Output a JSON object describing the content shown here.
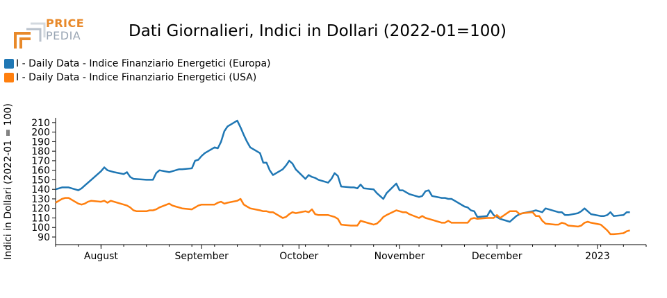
{
  "logo": {
    "line1": "PRICE",
    "line2": "PEDIA"
  },
  "colors": {
    "europa": "#1f77b4",
    "usa": "#ff7f0e",
    "logo_orange": "#e8892a",
    "logo_gray": "#9aa6b4"
  },
  "chart_data": {
    "type": "line",
    "title": "Dati Giornalieri, Indici in Dollari (2022-01=100)",
    "ylabel": "Indici in Dollari (2022-01 = 100)",
    "xlabel": "",
    "ylim": [
      82,
      215
    ],
    "xlim": [
      "2022-07-18",
      "2023-01-16"
    ],
    "yticks": [
      90,
      100,
      110,
      120,
      130,
      140,
      150,
      160,
      170,
      180,
      190,
      200,
      210
    ],
    "xticks": [
      {
        "label": "August",
        "date": "2022-08-01"
      },
      {
        "label": "September",
        "date": "2022-09-01"
      },
      {
        "label": "October",
        "date": "2022-10-01"
      },
      {
        "label": "November",
        "date": "2022-11-01"
      },
      {
        "label": "December",
        "date": "2022-12-01"
      },
      {
        "label": "2023",
        "date": "2023-01-01"
      }
    ],
    "legend_position": "top-left",
    "series": [
      {
        "name": "I - Daily Data - Indice Finanziario Energetici (Europa)",
        "color": "#1f77b4",
        "points": [
          [
            "2022-07-18",
            140
          ],
          [
            "2022-07-19",
            141
          ],
          [
            "2022-07-20",
            142
          ],
          [
            "2022-07-21",
            142
          ],
          [
            "2022-07-22",
            142
          ],
          [
            "2022-07-25",
            139
          ],
          [
            "2022-07-26",
            141
          ],
          [
            "2022-07-27",
            144
          ],
          [
            "2022-07-28",
            147
          ],
          [
            "2022-07-29",
            150
          ],
          [
            "2022-08-01",
            159
          ],
          [
            "2022-08-02",
            163
          ],
          [
            "2022-08-03",
            160
          ],
          [
            "2022-08-05",
            158
          ],
          [
            "2022-08-08",
            156
          ],
          [
            "2022-08-09",
            158
          ],
          [
            "2022-08-10",
            153
          ],
          [
            "2022-08-11",
            151
          ],
          [
            "2022-08-15",
            150
          ],
          [
            "2022-08-17",
            150
          ],
          [
            "2022-08-18",
            157
          ],
          [
            "2022-08-19",
            160
          ],
          [
            "2022-08-22",
            158
          ],
          [
            "2022-08-23",
            159
          ],
          [
            "2022-08-24",
            160
          ],
          [
            "2022-08-25",
            161
          ],
          [
            "2022-08-26",
            161
          ],
          [
            "2022-08-29",
            162
          ],
          [
            "2022-08-30",
            170
          ],
          [
            "2022-08-31",
            171
          ],
          [
            "2022-09-01",
            175
          ],
          [
            "2022-09-02",
            178
          ],
          [
            "2022-09-05",
            184
          ],
          [
            "2022-09-06",
            183
          ],
          [
            "2022-09-07",
            190
          ],
          [
            "2022-09-08",
            201
          ],
          [
            "2022-09-09",
            206
          ],
          [
            "2022-09-12",
            212
          ],
          [
            "2022-09-13",
            205
          ],
          [
            "2022-09-14",
            197
          ],
          [
            "2022-09-15",
            190
          ],
          [
            "2022-09-16",
            184
          ],
          [
            "2022-09-19",
            178
          ],
          [
            "2022-09-20",
            168
          ],
          [
            "2022-09-21",
            168
          ],
          [
            "2022-09-22",
            160
          ],
          [
            "2022-09-23",
            155
          ],
          [
            "2022-09-26",
            161
          ],
          [
            "2022-09-27",
            165
          ],
          [
            "2022-09-28",
            170
          ],
          [
            "2022-09-29",
            167
          ],
          [
            "2022-09-30",
            161
          ],
          [
            "2022-10-03",
            151
          ],
          [
            "2022-10-04",
            155
          ],
          [
            "2022-10-05",
            153
          ],
          [
            "2022-10-06",
            152
          ],
          [
            "2022-10-07",
            150
          ],
          [
            "2022-10-10",
            147
          ],
          [
            "2022-10-11",
            151
          ],
          [
            "2022-10-12",
            157
          ],
          [
            "2022-10-13",
            154
          ],
          [
            "2022-10-14",
            143
          ],
          [
            "2022-10-17",
            142
          ],
          [
            "2022-10-18",
            142
          ],
          [
            "2022-10-19",
            141
          ],
          [
            "2022-10-20",
            145
          ],
          [
            "2022-10-21",
            141
          ],
          [
            "2022-10-24",
            140
          ],
          [
            "2022-10-25",
            136
          ],
          [
            "2022-10-26",
            133
          ],
          [
            "2022-10-27",
            130
          ],
          [
            "2022-10-28",
            136
          ],
          [
            "2022-10-31",
            146
          ],
          [
            "2022-11-01",
            139
          ],
          [
            "2022-11-02",
            139
          ],
          [
            "2022-11-03",
            137
          ],
          [
            "2022-11-04",
            135
          ],
          [
            "2022-11-07",
            132
          ],
          [
            "2022-11-08",
            133
          ],
          [
            "2022-11-09",
            138
          ],
          [
            "2022-11-10",
            139
          ],
          [
            "2022-11-11",
            133
          ],
          [
            "2022-11-14",
            131
          ],
          [
            "2022-11-15",
            131
          ],
          [
            "2022-11-16",
            130
          ],
          [
            "2022-11-17",
            130
          ],
          [
            "2022-11-18",
            128
          ],
          [
            "2022-11-21",
            122
          ],
          [
            "2022-11-22",
            121
          ],
          [
            "2022-11-23",
            118
          ],
          [
            "2022-11-24",
            117
          ],
          [
            "2022-11-25",
            111
          ],
          [
            "2022-11-28",
            112
          ],
          [
            "2022-11-29",
            118
          ],
          [
            "2022-11-30",
            113
          ],
          [
            "2022-12-01",
            111
          ],
          [
            "2022-12-02",
            109
          ],
          [
            "2022-12-05",
            106
          ],
          [
            "2022-12-06",
            109
          ],
          [
            "2022-12-07",
            112
          ],
          [
            "2022-12-08",
            114
          ],
          [
            "2022-12-09",
            115
          ],
          [
            "2022-12-12",
            117
          ],
          [
            "2022-12-13",
            118
          ],
          [
            "2022-12-14",
            117
          ],
          [
            "2022-12-15",
            116
          ],
          [
            "2022-12-16",
            120
          ],
          [
            "2022-12-19",
            117
          ],
          [
            "2022-12-20",
            116
          ],
          [
            "2022-12-21",
            116
          ],
          [
            "2022-12-22",
            113
          ],
          [
            "2022-12-23",
            113
          ],
          [
            "2022-12-26",
            115
          ],
          [
            "2022-12-27",
            117
          ],
          [
            "2022-12-28",
            120
          ],
          [
            "2022-12-29",
            117
          ],
          [
            "2022-12-30",
            114
          ],
          [
            "2023-01-02",
            112
          ],
          [
            "2023-01-03",
            112
          ],
          [
            "2023-01-04",
            113
          ],
          [
            "2023-01-05",
            116
          ],
          [
            "2023-01-06",
            112
          ],
          [
            "2023-01-09",
            113
          ],
          [
            "2023-01-10",
            116
          ],
          [
            "2023-01-11",
            116
          ]
        ]
      },
      {
        "name": "I - Daily Data - Indice Finanziario Energetici (USA)",
        "color": "#ff7f0e",
        "points": [
          [
            "2022-07-18",
            126
          ],
          [
            "2022-07-19",
            128
          ],
          [
            "2022-07-20",
            130
          ],
          [
            "2022-07-21",
            131
          ],
          [
            "2022-07-22",
            131
          ],
          [
            "2022-07-25",
            125
          ],
          [
            "2022-07-26",
            124
          ],
          [
            "2022-07-27",
            125
          ],
          [
            "2022-07-28",
            127
          ],
          [
            "2022-07-29",
            128
          ],
          [
            "2022-08-01",
            127
          ],
          [
            "2022-08-02",
            128
          ],
          [
            "2022-08-03",
            126
          ],
          [
            "2022-08-04",
            128
          ],
          [
            "2022-08-05",
            127
          ],
          [
            "2022-08-08",
            124
          ],
          [
            "2022-08-09",
            123
          ],
          [
            "2022-08-10",
            121
          ],
          [
            "2022-08-11",
            118
          ],
          [
            "2022-08-12",
            117
          ],
          [
            "2022-08-15",
            117
          ],
          [
            "2022-08-16",
            118
          ],
          [
            "2022-08-17",
            118
          ],
          [
            "2022-08-18",
            119
          ],
          [
            "2022-08-19",
            121
          ],
          [
            "2022-08-22",
            125
          ],
          [
            "2022-08-23",
            123
          ],
          [
            "2022-08-24",
            122
          ],
          [
            "2022-08-25",
            121
          ],
          [
            "2022-08-26",
            120
          ],
          [
            "2022-08-29",
            119
          ],
          [
            "2022-08-30",
            121
          ],
          [
            "2022-08-31",
            123
          ],
          [
            "2022-09-01",
            124
          ],
          [
            "2022-09-02",
            124
          ],
          [
            "2022-09-05",
            124
          ],
          [
            "2022-09-06",
            126
          ],
          [
            "2022-09-07",
            127
          ],
          [
            "2022-09-08",
            125
          ],
          [
            "2022-09-09",
            126
          ],
          [
            "2022-09-12",
            128
          ],
          [
            "2022-09-13",
            130
          ],
          [
            "2022-09-14",
            124
          ],
          [
            "2022-09-15",
            122
          ],
          [
            "2022-09-16",
            120
          ],
          [
            "2022-09-19",
            118
          ],
          [
            "2022-09-20",
            117
          ],
          [
            "2022-09-21",
            117
          ],
          [
            "2022-09-22",
            116
          ],
          [
            "2022-09-23",
            116
          ],
          [
            "2022-09-26",
            110
          ],
          [
            "2022-09-27",
            111
          ],
          [
            "2022-09-28",
            114
          ],
          [
            "2022-09-29",
            116
          ],
          [
            "2022-09-30",
            115
          ],
          [
            "2022-10-03",
            117
          ],
          [
            "2022-10-04",
            116
          ],
          [
            "2022-10-05",
            119
          ],
          [
            "2022-10-06",
            114
          ],
          [
            "2022-10-07",
            113
          ],
          [
            "2022-10-10",
            113
          ],
          [
            "2022-10-11",
            112
          ],
          [
            "2022-10-12",
            111
          ],
          [
            "2022-10-13",
            109
          ],
          [
            "2022-10-14",
            103
          ],
          [
            "2022-10-17",
            102
          ],
          [
            "2022-10-18",
            102
          ],
          [
            "2022-10-19",
            102
          ],
          [
            "2022-10-20",
            107
          ],
          [
            "2022-10-21",
            106
          ],
          [
            "2022-10-24",
            103
          ],
          [
            "2022-10-25",
            104
          ],
          [
            "2022-10-26",
            107
          ],
          [
            "2022-10-27",
            111
          ],
          [
            "2022-10-28",
            113
          ],
          [
            "2022-10-31",
            118
          ],
          [
            "2022-11-01",
            117
          ],
          [
            "2022-11-02",
            116
          ],
          [
            "2022-11-03",
            116
          ],
          [
            "2022-11-04",
            114
          ],
          [
            "2022-11-07",
            110
          ],
          [
            "2022-11-08",
            112
          ],
          [
            "2022-11-09",
            110
          ],
          [
            "2022-11-10",
            109
          ],
          [
            "2022-11-11",
            108
          ],
          [
            "2022-11-14",
            105
          ],
          [
            "2022-11-15",
            105
          ],
          [
            "2022-11-16",
            107
          ],
          [
            "2022-11-17",
            105
          ],
          [
            "2022-11-18",
            105
          ],
          [
            "2022-11-21",
            105
          ],
          [
            "2022-11-22",
            105
          ],
          [
            "2022-11-23",
            109
          ],
          [
            "2022-11-24",
            110
          ],
          [
            "2022-11-25",
            109
          ],
          [
            "2022-11-28",
            110
          ],
          [
            "2022-11-29",
            110
          ],
          [
            "2022-11-30",
            110
          ],
          [
            "2022-12-01",
            113
          ],
          [
            "2022-12-02",
            110
          ],
          [
            "2022-12-05",
            117
          ],
          [
            "2022-12-06",
            117
          ],
          [
            "2022-12-07",
            117
          ],
          [
            "2022-12-08",
            114
          ],
          [
            "2022-12-09",
            115
          ],
          [
            "2022-12-12",
            116
          ],
          [
            "2022-12-13",
            112
          ],
          [
            "2022-12-14",
            112
          ],
          [
            "2022-12-15",
            107
          ],
          [
            "2022-12-16",
            104
          ],
          [
            "2022-12-19",
            103
          ],
          [
            "2022-12-20",
            103
          ],
          [
            "2022-12-21",
            105
          ],
          [
            "2022-12-22",
            104
          ],
          [
            "2022-12-23",
            102
          ],
          [
            "2022-12-26",
            101
          ],
          [
            "2022-12-27",
            102
          ],
          [
            "2022-12-28",
            105
          ],
          [
            "2022-12-29",
            106
          ],
          [
            "2022-12-30",
            105
          ],
          [
            "2023-01-02",
            103
          ],
          [
            "2023-01-03",
            100
          ],
          [
            "2023-01-04",
            97
          ],
          [
            "2023-01-05",
            93
          ],
          [
            "2023-01-06",
            93
          ],
          [
            "2023-01-09",
            94
          ],
          [
            "2023-01-10",
            96
          ],
          [
            "2023-01-11",
            97
          ]
        ]
      }
    ]
  }
}
